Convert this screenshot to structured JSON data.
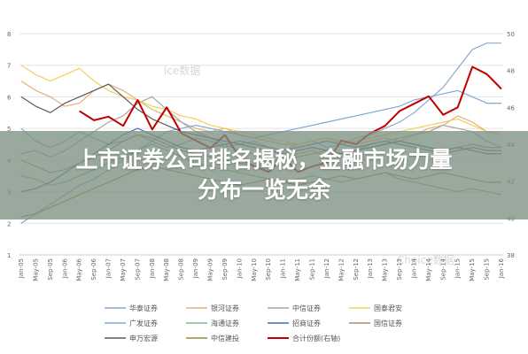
{
  "banner": {
    "line1": "上市证券公司排名揭秘，金融市场力量",
    "line2": "分布一览无余"
  },
  "watermarks": [
    "ice数据",
    "Choice数据"
  ],
  "chart_data": {
    "type": "line",
    "x_tick_labels": [
      "Jan-05",
      "May-05",
      "Sep-05",
      "Jan-06",
      "May-06",
      "Sep-06",
      "Jan-07",
      "May-07",
      "Sep-07",
      "Jan-08",
      "May-08",
      "Sep-08",
      "Jan-09",
      "May-09",
      "Sep-09",
      "Jan-10",
      "May-10",
      "Sep-10",
      "Jan-11",
      "May-11",
      "Sep-11",
      "Jan-12",
      "May-12",
      "Sep-12",
      "Jan-13",
      "May-13",
      "Sep-13",
      "Jan-14",
      "May-14",
      "Sep-14",
      "Jan-15",
      "May-15",
      "Sep-15",
      "Jan-16"
    ],
    "y_left_ticks": [
      "8",
      "7",
      "6",
      "5",
      "4",
      "3",
      "2",
      "1"
    ],
    "y_left_range": [
      1,
      8
    ],
    "y_right_ticks": [
      "50",
      "48",
      "46",
      "44",
      "42",
      "40",
      "38"
    ],
    "y_right_range": [
      38,
      50
    ],
    "grid": true,
    "legend_position": "bottom",
    "series": [
      {
        "name": "华泰证券",
        "color": "#8fa9c9",
        "axis": "left",
        "values": [
          5.0,
          4.6,
          4.4,
          4.6,
          4.9,
          4.7,
          4.5,
          4.6,
          4.8,
          4.6,
          4.4,
          4.5,
          4.7,
          4.6,
          4.4,
          4.5,
          4.6,
          4.4,
          4.3,
          4.5,
          4.6,
          4.4,
          4.5,
          4.7,
          4.8,
          5.0,
          5.2,
          5.5,
          5.9,
          6.3,
          6.9,
          7.5,
          7.7,
          7.7
        ]
      },
      {
        "name": "银河证券",
        "color": "#e6b07a",
        "axis": "left",
        "values": [
          6.5,
          6.2,
          6.0,
          5.7,
          5.8,
          6.2,
          6.4,
          6.2,
          5.9,
          5.6,
          5.4,
          5.2,
          5.0,
          4.9,
          5.0,
          4.8,
          4.7,
          4.6,
          4.5,
          4.5,
          4.6,
          4.7,
          4.6,
          4.5,
          4.6,
          4.7,
          4.6,
          4.8,
          5.0,
          5.1,
          5.4,
          5.2,
          4.9,
          4.8
        ]
      },
      {
        "name": "中信证券",
        "color": "#a5a5a5",
        "axis": "left",
        "values": [
          4.2,
          4.3,
          4.1,
          4.3,
          4.6,
          4.9,
          5.2,
          5.4,
          5.8,
          6.0,
          5.6,
          5.2,
          4.9,
          4.7,
          4.5,
          4.3,
          4.2,
          4.0,
          4.0,
          4.2,
          4.3,
          4.1,
          4.2,
          4.3,
          4.5,
          4.6,
          4.7,
          4.8,
          4.9,
          5.1,
          5.0,
          4.9,
          4.6,
          4.4
        ]
      },
      {
        "name": "国泰君安",
        "color": "#f2cf5b",
        "axis": "left",
        "values": [
          7.0,
          6.7,
          6.5,
          6.7,
          6.9,
          6.5,
          6.2,
          6.0,
          5.9,
          5.7,
          5.6,
          5.4,
          5.3,
          5.1,
          5.0,
          4.9,
          4.8,
          4.7,
          4.6,
          4.5,
          4.6,
          4.7,
          4.5,
          4.6,
          4.7,
          4.8,
          4.9,
          5.0,
          5.1,
          5.2,
          5.3,
          5.1,
          4.9,
          4.9
        ]
      },
      {
        "name": "广发证券",
        "color": "#7ea6d8",
        "axis": "left",
        "values": [
          2.0,
          2.3,
          2.6,
          2.9,
          3.2,
          3.4,
          3.7,
          4.0,
          4.3,
          4.6,
          4.9,
          5.0,
          5.1,
          5.0,
          4.9,
          4.8,
          4.7,
          4.8,
          4.9,
          5.0,
          5.1,
          5.2,
          5.3,
          5.4,
          5.5,
          5.6,
          5.7,
          5.9,
          6.0,
          6.1,
          6.2,
          6.0,
          5.8,
          5.8
        ]
      },
      {
        "name": "海通证券",
        "color": "#86b58d",
        "axis": "left",
        "values": [
          3.5,
          3.4,
          3.2,
          3.3,
          3.5,
          3.7,
          3.9,
          4.1,
          4.3,
          4.5,
          4.3,
          4.1,
          3.9,
          3.8,
          3.7,
          3.6,
          3.5,
          3.4,
          3.3,
          3.4,
          3.5,
          3.4,
          3.3,
          3.4,
          3.5,
          3.6,
          3.4,
          3.3,
          3.2,
          3.1,
          3.0,
          3.1,
          3.0,
          2.9
        ]
      },
      {
        "name": "招商证券",
        "color": "#3f6fb5",
        "axis": "left",
        "values": [
          3.0,
          3.1,
          3.3,
          3.6,
          3.9,
          4.2,
          4.5,
          4.8,
          5.0,
          4.8,
          4.6,
          4.4,
          4.3,
          4.4,
          4.5,
          4.6,
          4.5,
          4.4,
          4.3,
          4.4,
          4.5,
          4.6,
          4.5,
          4.4,
          4.5,
          4.6,
          4.5,
          4.4,
          4.3,
          4.2,
          4.3,
          4.4,
          4.3,
          4.3
        ]
      },
      {
        "name": "国信证券",
        "color": "#b38b6d",
        "axis": "left",
        "values": [
          4.0,
          3.8,
          3.6,
          3.7,
          3.9,
          4.1,
          4.3,
          4.6,
          4.8,
          4.7,
          4.5,
          4.3,
          4.2,
          4.1,
          4.0,
          3.9,
          3.8,
          3.9,
          4.0,
          4.1,
          4.2,
          4.3,
          4.2,
          4.3,
          4.4,
          4.5,
          4.6,
          4.5,
          4.4,
          4.3,
          4.4,
          4.5,
          4.4,
          4.4
        ]
      },
      {
        "name": "申万宏源",
        "color": "#595959",
        "axis": "left",
        "values": [
          6.0,
          5.7,
          5.5,
          5.8,
          6.0,
          6.2,
          6.4,
          6.0,
          5.6,
          5.3,
          5.1,
          4.9,
          4.8,
          4.7,
          4.6,
          4.5,
          4.4,
          4.3,
          4.2,
          4.3,
          4.4,
          4.3,
          4.2,
          4.3,
          4.4,
          4.5,
          4.6,
          4.5,
          4.4,
          4.3,
          4.4,
          4.3,
          4.2,
          4.2
        ]
      },
      {
        "name": "中信建投",
        "color": "#9c8a3a",
        "axis": "left",
        "values": [
          2.2,
          2.3,
          2.5,
          2.7,
          2.9,
          3.1,
          3.3,
          3.5,
          3.7,
          3.8,
          3.7,
          3.6,
          3.5,
          3.4,
          3.3,
          3.2,
          3.3,
          3.4,
          3.3,
          3.2,
          3.3,
          3.4,
          3.5,
          3.4,
          3.5,
          3.6,
          3.5,
          3.4,
          3.5,
          3.6,
          3.5,
          3.4,
          3.3,
          3.3
        ]
      },
      {
        "name": "合计份额(右轴)",
        "color": "#c00000",
        "axis": "right",
        "values": [
          null,
          null,
          null,
          null,
          45.8,
          45.3,
          45.5,
          45.0,
          46.4,
          44.8,
          46.0,
          44.6,
          44.2,
          43.8,
          44.5,
          43.3,
          42.8,
          42.5,
          43.3,
          42.5,
          42.8,
          43.0,
          44.2,
          44.0,
          44.6,
          45.0,
          45.8,
          46.2,
          46.6,
          45.6,
          46.0,
          48.2,
          47.8,
          47.0
        ]
      }
    ]
  },
  "legend_items": [
    {
      "label": "华泰证券",
      "color": "#8fa9c9"
    },
    {
      "label": "银河证券",
      "color": "#e6b07a"
    },
    {
      "label": "中信证券",
      "color": "#a5a5a5"
    },
    {
      "label": "国泰君安",
      "color": "#f2cf5b"
    },
    {
      "label": "广发证券",
      "color": "#7ea6d8"
    },
    {
      "label": "海通证券",
      "color": "#86b58d"
    },
    {
      "label": "招商证券",
      "color": "#3f6fb5"
    },
    {
      "label": "国信证券",
      "color": "#b38b6d"
    },
    {
      "label": "申万宏源",
      "color": "#595959"
    },
    {
      "label": "中信建投",
      "color": "#9c8a3a"
    },
    {
      "label": "合计份额(右轴)",
      "color": "#c00000"
    }
  ]
}
